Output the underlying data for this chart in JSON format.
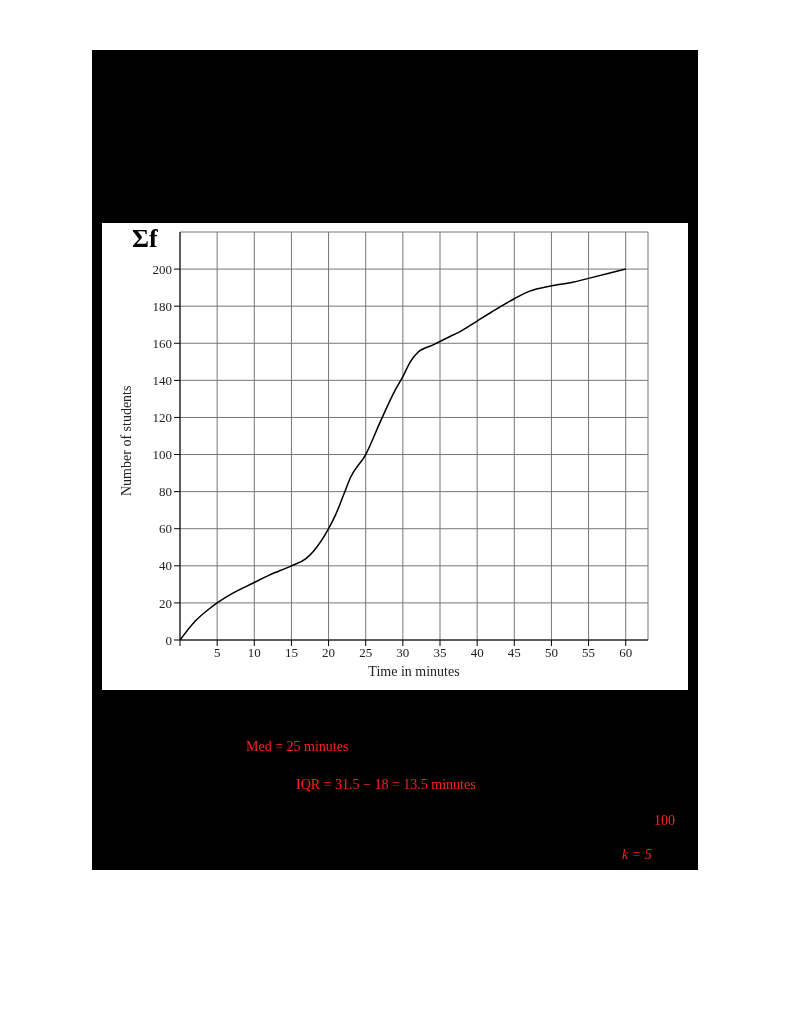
{
  "chart_data": {
    "type": "line",
    "xlabel": "Time in minutes",
    "ylabel": "Number of students",
    "annotations": [
      "Σf",
      "Med = 25 minutes",
      "IQR = 31.5 − 18 = 13.5 minutes",
      "100",
      "k = 5"
    ],
    "x": [
      0,
      2,
      4,
      5,
      7,
      10,
      12,
      15,
      17,
      18,
      20,
      21,
      22,
      23,
      25,
      27,
      29,
      30,
      31,
      32,
      34,
      36,
      38,
      40,
      42,
      45,
      47,
      50,
      53,
      55,
      58,
      60
    ],
    "series": [
      {
        "color": "#000000",
        "values": [
          0,
          10,
          17,
          20,
          25,
          31,
          35,
          40,
          44,
          48,
          60,
          68,
          78,
          88,
          100,
          118,
          135,
          142,
          150,
          155,
          159,
          163,
          167,
          172,
          177,
          184,
          188,
          191,
          193,
          195,
          198,
          200
        ]
      }
    ],
    "xlim": [
      0,
      63
    ],
    "ylim": [
      0,
      220
    ],
    "xticks": [
      {
        "value": 0,
        "label": null
      },
      5,
      10,
      15,
      20,
      25,
      30,
      35,
      40,
      45,
      50,
      55,
      60
    ],
    "yticks": [
      0,
      20,
      40,
      60,
      80,
      100,
      120,
      140,
      160,
      180,
      200
    ],
    "grid": true,
    "marker": "none",
    "line_style": "solid",
    "legend": false
  }
}
